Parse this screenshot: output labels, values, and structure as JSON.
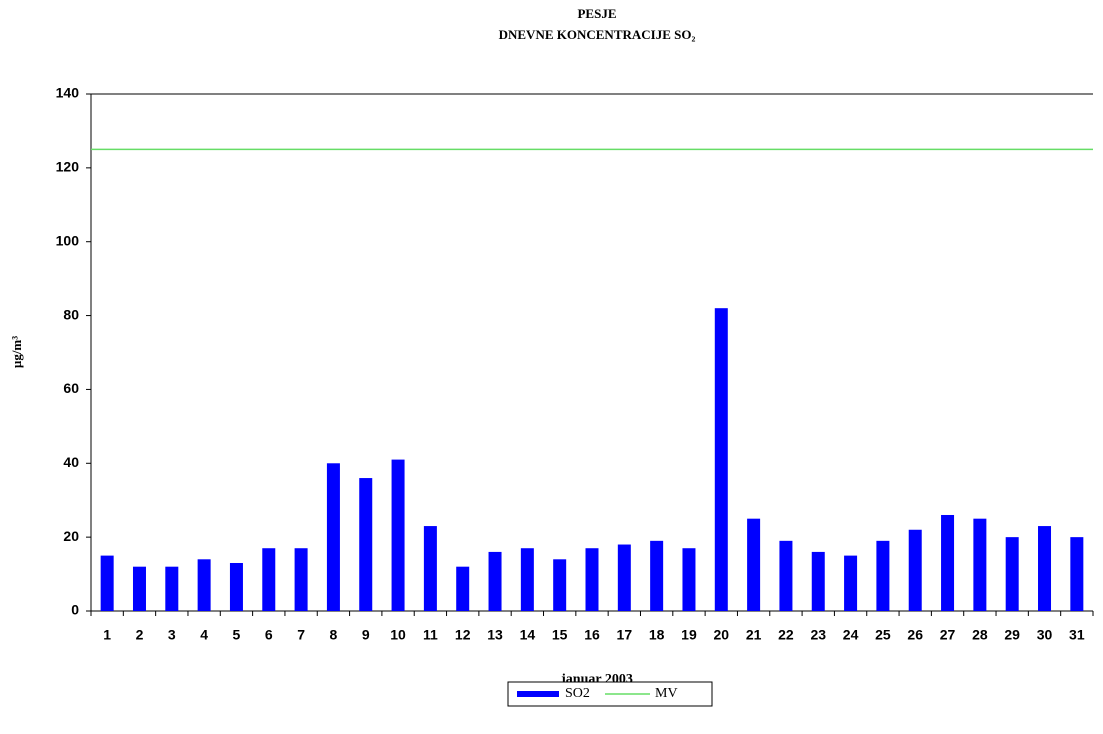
{
  "chart_data": {
    "type": "bar",
    "title": "PESJE",
    "subtitle": "DNEVNE KONCENTRACIJE  SO₂",
    "x_label": "januar 2003",
    "y_label": "µg/m³",
    "categories": [
      "1",
      "2",
      "3",
      "4",
      "5",
      "6",
      "7",
      "8",
      "9",
      "10",
      "11",
      "12",
      "13",
      "14",
      "15",
      "16",
      "17",
      "18",
      "19",
      "20",
      "21",
      "22",
      "23",
      "24",
      "25",
      "26",
      "27",
      "28",
      "29",
      "30",
      "31"
    ],
    "series": [
      {
        "name": "SO2",
        "color": "#0000ff",
        "values": [
          15,
          12,
          12,
          14,
          13,
          17,
          17,
          40,
          36,
          41,
          23,
          12,
          16,
          17,
          14,
          17,
          18,
          19,
          17,
          82,
          25,
          19,
          16,
          15,
          19,
          22,
          26,
          25,
          20,
          23,
          20
        ]
      }
    ],
    "reference_lines": [
      {
        "name": "MV",
        "value": 125,
        "color": "#66dd66"
      }
    ],
    "ylim": [
      0,
      140
    ],
    "yticks": [
      0,
      20,
      40,
      60,
      80,
      100,
      120,
      140
    ],
    "legend": "bottom"
  }
}
